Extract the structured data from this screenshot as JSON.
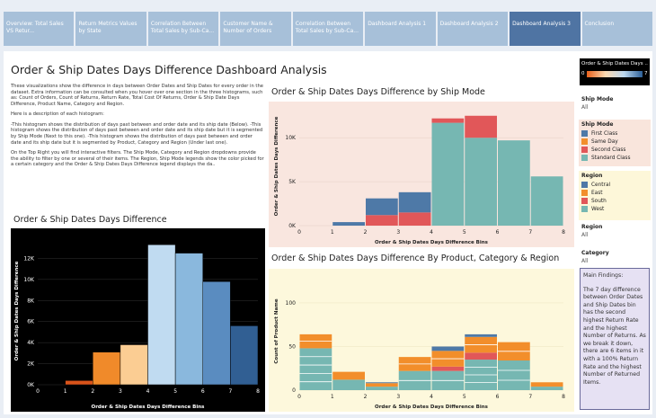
{
  "tabs": [
    {
      "label": "Overview: Total Sales VS Retur..."
    },
    {
      "label": "Return Metrics Values by State"
    },
    {
      "label": "Correlation Between Total Sales by Sub-Ca..."
    },
    {
      "label": "Customer Name & Number of Orders"
    },
    {
      "label": "Correlation Between Total Sales by Sub-Ca..."
    },
    {
      "label": "Dashboard Analysis 1"
    },
    {
      "label": "Dashboard Analysis 2"
    },
    {
      "label": "Dashboard Analysis 3"
    },
    {
      "label": "Conclusion"
    }
  ],
  "active_tab": 7,
  "title": "Order & Ship Dates Days Difference Dashboard Analysis",
  "description": [
    "These visualizations show the difference in days between Order Dates and Ship Dates for every order in the dataset. Extra information can be consulted when you hover over one section in the three histograms, such as: Count of Orders, Count of Returns, Return Rate, Total Cost Of Returns, Order & Ship Date Days Difference, Product Name, Category and Region.",
    "Here is a description of each histogram:",
    "-This histogram shows the distribution of days past between and order date and its ship date (Below). -This histogram shows the distribution of days past between and order date and its ship date but it is segmented by Ship Mode (Next to this one). -This histogram shows the distribution of days past between and order date and its ship date but it is segmented by Product, Category and Region (Under last one).",
    "On the Top Right you will find interactive filters. The Ship Mode, Category and Region dropdowns provide the ability to filter by one or several of their items. The Region, Ship Mode legends show the color picked for a certain category and the Order & Ship Dates Days Difference legend displays the da.."
  ],
  "filters": {
    "gradient_title": "Order & Ship Dates Days ..",
    "gradient_min": "0",
    "gradient_max": "7",
    "ship_mode_label": "Ship Mode",
    "ship_mode_value": "All",
    "region_label": "Region",
    "region_value": "All",
    "category_label": "Category",
    "category_value": "All"
  },
  "legends": {
    "ship_mode": {
      "title": "Ship Mode",
      "items": [
        {
          "label": "First Class",
          "color": "#4e79a7"
        },
        {
          "label": "Same Day",
          "color": "#f28e2b"
        },
        {
          "label": "Second Class",
          "color": "#e15759"
        },
        {
          "label": "Standard Class",
          "color": "#76b7b2"
        }
      ]
    },
    "region": {
      "title": "Region",
      "items": [
        {
          "label": "Central",
          "color": "#4e79a7"
        },
        {
          "label": "East",
          "color": "#f28e2b"
        },
        {
          "label": "South",
          "color": "#e15759"
        },
        {
          "label": "West",
          "color": "#76b7b2"
        }
      ]
    }
  },
  "findings": [
    "Main Findings:",
    "The 7 day difference between Order Dates and Ship Dates bin has the second highest Return Rate and the highest Number of Returns. As we break it down, there are 6 items in it with a 100% Return Rate and the highest Number of Returned Items."
  ],
  "chart_data": [
    {
      "id": "overall",
      "type": "bar",
      "title": "Order & Ship Dates Days Difference",
      "xlabel": "Order & Ship Dates Days Difference Bins",
      "ylabel": "Order & Ship Dates Days Difference",
      "x_ticks": [
        "0",
        "1",
        "2",
        "3",
        "4",
        "5",
        "6",
        "7",
        "8"
      ],
      "y_ticks": [
        {
          "v": 0,
          "l": "0K"
        },
        {
          "v": 2000,
          "l": "2K"
        },
        {
          "v": 4000,
          "l": "4K"
        },
        {
          "v": 6000,
          "l": "6K"
        },
        {
          "v": 8000,
          "l": "8K"
        },
        {
          "v": 10000,
          "l": "10K"
        },
        {
          "v": 12000,
          "l": "12K"
        }
      ],
      "ylim": [
        0,
        14000
      ],
      "bars": [
        {
          "bin": 1,
          "value": 400,
          "color": "#d9531a"
        },
        {
          "bin": 2,
          "value": 3100,
          "color": "#f08a2a"
        },
        {
          "bin": 3,
          "value": 3800,
          "color": "#fbcd93"
        },
        {
          "bin": 4,
          "value": 13300,
          "color": "#c0dbf1"
        },
        {
          "bin": 5,
          "value": 12500,
          "color": "#8ab8dd"
        },
        {
          "bin": 6,
          "value": 9800,
          "color": "#5a8cc0"
        },
        {
          "bin": 7,
          "value": 5600,
          "color": "#315f93"
        }
      ]
    },
    {
      "id": "ship_mode",
      "type": "bar",
      "title": "Order & Ship Dates Days Difference by Ship Mode",
      "xlabel": "Order & Ship Dates Days Difference Bins",
      "ylabel": "Order & Ship Dates Days Difference",
      "x_ticks": [
        "0",
        "1",
        "2",
        "3",
        "4",
        "5",
        "6",
        "7",
        "8"
      ],
      "y_ticks": [
        {
          "v": 0,
          "l": "0K"
        },
        {
          "v": 5000,
          "l": "5K"
        },
        {
          "v": 10000,
          "l": "10K"
        }
      ],
      "ylim": [
        0,
        13500
      ],
      "stacked": true,
      "series": [
        {
          "name": "Standard Class",
          "color": "#76b7b2",
          "values": [
            0,
            0,
            0,
            0,
            11700,
            10000,
            9700,
            5600
          ]
        },
        {
          "name": "Second Class",
          "color": "#e15759",
          "values": [
            0,
            0,
            1200,
            1500,
            500,
            2500,
            0,
            0
          ]
        },
        {
          "name": "First Class",
          "color": "#4e79a7",
          "values": [
            0,
            400,
            1900,
            2300,
            0,
            0,
            0,
            0
          ]
        },
        {
          "name": "Same Day",
          "color": "#f28e2b",
          "values": [
            0,
            0,
            0,
            0,
            0,
            0,
            0,
            0
          ]
        }
      ]
    },
    {
      "id": "product",
      "type": "bar",
      "title": "Order & Ship Dates Days Difference By Product, Category & Region",
      "xlabel": "Order & Ship Dates Days Difference Bins",
      "ylabel": "Count of Product Name",
      "x_ticks": [
        "0",
        "1",
        "2",
        "3",
        "4",
        "5",
        "6",
        "7",
        "8"
      ],
      "y_ticks": [
        {
          "v": 0,
          "l": "0"
        },
        {
          "v": 50,
          "l": "50"
        },
        {
          "v": 100,
          "l": "100"
        }
      ],
      "ylim": [
        0,
        135
      ],
      "stacked": true,
      "segments": 10,
      "series": [
        {
          "name": "West",
          "color": "#76b7b2",
          "values": [
            48,
            12,
            4,
            22,
            22,
            35,
            34,
            4
          ]
        },
        {
          "name": "South",
          "color": "#e15759",
          "values": [
            0,
            0,
            0,
            0,
            5,
            8,
            0,
            0
          ]
        },
        {
          "name": "East",
          "color": "#f28e2b",
          "values": [
            16,
            9,
            4,
            16,
            18,
            18,
            21,
            5
          ]
        },
        {
          "name": "Central",
          "color": "#4e79a7",
          "values": [
            0,
            0,
            1,
            0,
            5,
            3,
            0,
            0
          ]
        }
      ]
    }
  ]
}
